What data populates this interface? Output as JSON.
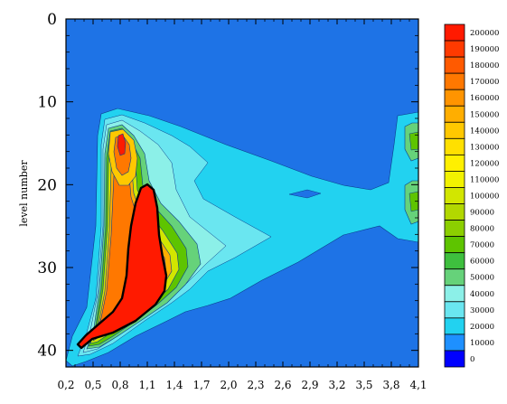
{
  "chart_data": {
    "type": "contour",
    "title": "",
    "xlabel": "",
    "ylabel": "level number",
    "x_ticks": [
      "0,2",
      "0,5",
      "0,8",
      "1,1",
      "1,4",
      "1,7",
      "2,0",
      "2,3",
      "2,6",
      "2,9",
      "3,2",
      "3,5",
      "3,8",
      "4,1"
    ],
    "x_range": [
      0.2,
      4.1
    ],
    "y_ticks": [
      0,
      10,
      20,
      30,
      40
    ],
    "y_range": [
      0,
      42
    ],
    "y_inverted": true,
    "colorbar": {
      "labels": [
        "200000",
        "190000",
        "180000",
        "170000",
        "160000",
        "150000",
        "140000",
        "130000",
        "120000",
        "110000",
        "100000",
        "90000",
        "80000",
        "70000",
        "60000",
        "50000",
        "40000",
        "30000",
        "20000",
        "10000",
        "0"
      ],
      "colors": [
        "#ff1a00",
        "#ff3a00",
        "#ff5a00",
        "#ff7800",
        "#ff9400",
        "#ffae00",
        "#ffc800",
        "#ffe000",
        "#fff000",
        "#f2f200",
        "#d2e600",
        "#b2d800",
        "#8ccf00",
        "#5ec400",
        "#3ebf3e",
        "#66d27a",
        "#8cf0e8",
        "#6ae6f0",
        "#22d2f0",
        "#1e90ff",
        "#0000ff"
      ]
    },
    "background_color": "#1e73e6",
    "features": [
      {
        "region": "core maximum",
        "x_range": [
          0.3,
          1.4
        ],
        "y_range": [
          20,
          39.5
        ],
        "min_value": 200000
      },
      {
        "region": "secondary maximum",
        "x_range": [
          0.75,
          0.9
        ],
        "y_range": [
          13,
          24
        ],
        "max_value": 190000
      },
      {
        "region": "tongue",
        "x_range": [
          1.4,
          4.1
        ],
        "y_range": [
          12,
          35
        ],
        "min_value": 10000
      },
      {
        "region": "edge maxima",
        "x_range": [
          3.8,
          4.1
        ],
        "y_range": [
          12,
          27
        ],
        "approx_value": 60000
      }
    ]
  }
}
